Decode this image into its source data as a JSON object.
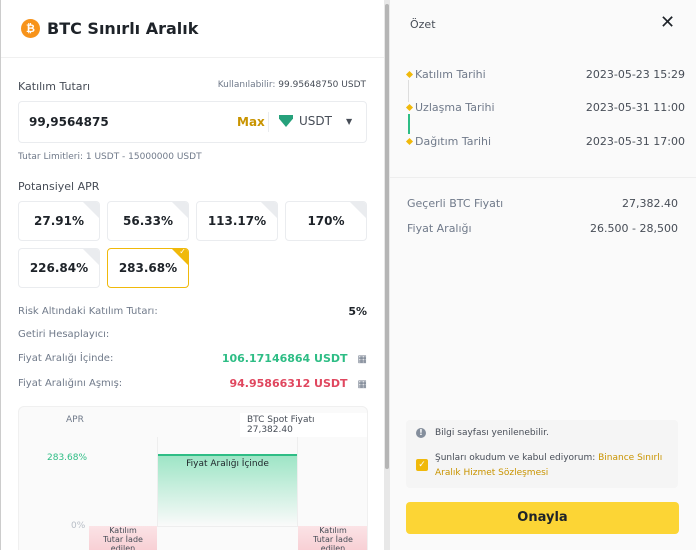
{
  "header": {
    "title": "BTC Sınırlı Aralık"
  },
  "amount": {
    "label": "Katılım Tutarı",
    "available_label": "Kullanılabilir:",
    "available_value": "99.95648750 USDT",
    "value": "99,9564875",
    "max": "Max",
    "currency": "USDT",
    "limits": "Tutar Limitleri: 1 USDT - 15000000 USDT"
  },
  "apr": {
    "label": "Potansiyel APR",
    "options": [
      "27.91%",
      "56.33%",
      "113.17%",
      "170%",
      "226.84%",
      "283.68%"
    ],
    "selected": "283.68%"
  },
  "risk": {
    "label": "Risk Altındaki Katılım Tutarı:",
    "value": "5%"
  },
  "calculator": {
    "label": "Getiri Hesaplayıcı:",
    "in_range_label": "Fiyat Aralığı İçinde:",
    "in_range_value": "106.17146864 USDT",
    "out_range_label": "Fiyat Aralığını Aşmış:",
    "out_range_value": "94.95866312 USDT"
  },
  "chart_data": {
    "type": "area",
    "ylabel": "APR",
    "y_ticks": [
      "283.68%",
      "0%"
    ],
    "spot_label": "BTC Spot Fiyatı",
    "spot_value": "27,382.40",
    "in_range_label": "Fiyat Aralığı İçinde",
    "out_range_label": "Katılım Tutar İade edilen",
    "in_range_apr": 283.68,
    "out_range_apr": 0
  },
  "summary": {
    "title": "Özet",
    "timeline": [
      {
        "label": "Katılım Tarihi",
        "value": "2023-05-23 15:29"
      },
      {
        "label": "Uzlaşma Tarihi",
        "value": "2023-05-31 11:00"
      },
      {
        "label": "Dağıtım Tarihi",
        "value": "2023-05-31 17:00"
      }
    ],
    "price_label": "Geçerli BTC Fiyatı",
    "price_value": "27,382.40",
    "range_label": "Fiyat Aralığı",
    "range_value": "26.500 - 28,500"
  },
  "notice": {
    "info": "Bilgi sayfası yenilenebilir.",
    "agree": "Şunları okudum ve kabul ediyorum:",
    "link": "Binance Sınırlı Aralık Hizmet Sözleşmesi",
    "checked": true
  },
  "confirm": "Onayla",
  "colors": {
    "accent": "#f0b90b",
    "green": "#2ebd85",
    "red": "#e0475f"
  }
}
